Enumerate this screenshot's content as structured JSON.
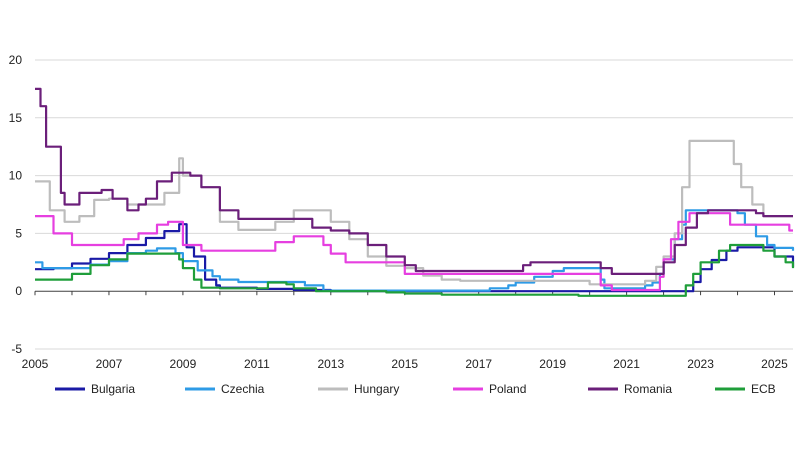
{
  "chart_data": {
    "type": "line",
    "title": "",
    "xlabel": "",
    "ylabel": "",
    "xlim": [
      2005,
      2025.5
    ],
    "ylim": [
      -5,
      20
    ],
    "grid": true,
    "legend_position": "bottom",
    "y_ticks": [
      "20",
      "15",
      "10",
      "5",
      "0",
      "-5"
    ],
    "x_ticks": [
      "2005",
      "2007",
      "2009",
      "2011",
      "2013",
      "2015",
      "2017",
      "2019",
      "2021",
      "2023",
      "2025"
    ],
    "series": [
      {
        "name": "Bulgaria",
        "color": "#1a1aa6",
        "points": [
          [
            2005,
            1.9
          ],
          [
            2005.5,
            2.0
          ],
          [
            2006,
            2.4
          ],
          [
            2006.5,
            2.8
          ],
          [
            2007,
            3.3
          ],
          [
            2007.5,
            4.0
          ],
          [
            2008,
            4.6
          ],
          [
            2008.5,
            5.2
          ],
          [
            2008.9,
            5.8
          ],
          [
            2009.1,
            3.8
          ],
          [
            2009.3,
            3.0
          ],
          [
            2009.6,
            1.0
          ],
          [
            2009.9,
            0.5
          ],
          [
            2010,
            0.3
          ],
          [
            2011,
            0.2
          ],
          [
            2012,
            0.1
          ],
          [
            2013,
            0.0
          ],
          [
            2015,
            0.0
          ],
          [
            2016,
            0.0
          ],
          [
            2020,
            0.0
          ],
          [
            2021,
            0.0
          ],
          [
            2022,
            0.0
          ],
          [
            2022.6,
            0.0
          ],
          [
            2022.8,
            0.8
          ],
          [
            2023,
            1.9
          ],
          [
            2023.3,
            2.7
          ],
          [
            2023.7,
            3.5
          ],
          [
            2024,
            3.8
          ],
          [
            2024.5,
            3.8
          ],
          [
            2025,
            3.0
          ],
          [
            2025.5,
            2.1
          ]
        ]
      },
      {
        "name": "Czechia",
        "color": "#2e9be6",
        "points": [
          [
            2005,
            2.5
          ],
          [
            2005.2,
            2.0
          ],
          [
            2006,
            2.0
          ],
          [
            2006.5,
            2.3
          ],
          [
            2007,
            2.6
          ],
          [
            2007.5,
            3.3
          ],
          [
            2008,
            3.5
          ],
          [
            2008.3,
            3.7
          ],
          [
            2008.6,
            3.7
          ],
          [
            2008.8,
            3.3
          ],
          [
            2009,
            2.6
          ],
          [
            2009.4,
            1.8
          ],
          [
            2009.8,
            1.3
          ],
          [
            2010,
            1.0
          ],
          [
            2010.5,
            0.8
          ],
          [
            2012,
            0.8
          ],
          [
            2012.3,
            0.5
          ],
          [
            2012.8,
            0.05
          ],
          [
            2013,
            0.05
          ],
          [
            2017,
            0.05
          ],
          [
            2017.3,
            0.25
          ],
          [
            2017.8,
            0.5
          ],
          [
            2018,
            0.75
          ],
          [
            2018.5,
            1.25
          ],
          [
            2019,
            1.75
          ],
          [
            2019.3,
            2.0
          ],
          [
            2020.2,
            2.0
          ],
          [
            2020.3,
            1.0
          ],
          [
            2020.4,
            0.25
          ],
          [
            2021.5,
            0.5
          ],
          [
            2021.7,
            0.75
          ],
          [
            2021.9,
            1.5
          ],
          [
            2022,
            2.75
          ],
          [
            2022.3,
            4.5
          ],
          [
            2022.5,
            5.75
          ],
          [
            2022.6,
            7.0
          ],
          [
            2023.9,
            7.0
          ],
          [
            2024,
            6.75
          ],
          [
            2024.2,
            5.75
          ],
          [
            2024.5,
            4.75
          ],
          [
            2024.8,
            4.0
          ],
          [
            2025,
            3.75
          ],
          [
            2025.5,
            3.5
          ]
        ]
      },
      {
        "name": "Hungary",
        "color": "#bdbdbd",
        "points": [
          [
            2005,
            9.5
          ],
          [
            2005.4,
            7.0
          ],
          [
            2005.8,
            6.0
          ],
          [
            2006.2,
            6.5
          ],
          [
            2006.6,
            7.9
          ],
          [
            2007,
            8.0
          ],
          [
            2007.5,
            7.5
          ],
          [
            2008,
            7.5
          ],
          [
            2008.5,
            8.5
          ],
          [
            2008.9,
            11.5
          ],
          [
            2009,
            10.0
          ],
          [
            2009.5,
            9.0
          ],
          [
            2010,
            6.0
          ],
          [
            2010.5,
            5.3
          ],
          [
            2011,
            5.3
          ],
          [
            2011.5,
            6.0
          ],
          [
            2012,
            7.0
          ],
          [
            2012.5,
            7.0
          ],
          [
            2013,
            6.0
          ],
          [
            2013.5,
            4.5
          ],
          [
            2014,
            3.0
          ],
          [
            2014.5,
            2.2
          ],
          [
            2015,
            2.0
          ],
          [
            2015.5,
            1.35
          ],
          [
            2016,
            1.0
          ],
          [
            2016.5,
            0.9
          ],
          [
            2020,
            0.6
          ],
          [
            2021,
            0.6
          ],
          [
            2021.5,
            0.9
          ],
          [
            2021.8,
            2.1
          ],
          [
            2022,
            3.0
          ],
          [
            2022.3,
            5.0
          ],
          [
            2022.5,
            9.0
          ],
          [
            2022.7,
            13.0
          ],
          [
            2023.7,
            13.0
          ],
          [
            2023.9,
            11.0
          ],
          [
            2024.1,
            9.0
          ],
          [
            2024.4,
            7.5
          ],
          [
            2024.7,
            6.5
          ],
          [
            2025.5,
            6.5
          ]
        ]
      },
      {
        "name": "Poland",
        "color": "#e63fe0",
        "points": [
          [
            2005,
            6.5
          ],
          [
            2005.2,
            6.5
          ],
          [
            2005.5,
            5.0
          ],
          [
            2006,
            4.0
          ],
          [
            2007,
            4.0
          ],
          [
            2007.4,
            4.5
          ],
          [
            2007.8,
            5.0
          ],
          [
            2008.3,
            5.75
          ],
          [
            2008.6,
            6.0
          ],
          [
            2008.9,
            6.0
          ],
          [
            2009,
            4.0
          ],
          [
            2009.5,
            3.5
          ],
          [
            2011,
            3.5
          ],
          [
            2011.5,
            4.25
          ],
          [
            2012,
            4.75
          ],
          [
            2012.5,
            4.75
          ],
          [
            2012.8,
            4.0
          ],
          [
            2013,
            3.25
          ],
          [
            2013.4,
            2.5
          ],
          [
            2014.8,
            2.5
          ],
          [
            2015,
            1.5
          ],
          [
            2020,
            1.5
          ],
          [
            2020.3,
            0.5
          ],
          [
            2020.6,
            0.1
          ],
          [
            2021.7,
            0.1
          ],
          [
            2021.9,
            1.25
          ],
          [
            2022,
            2.75
          ],
          [
            2022.2,
            4.5
          ],
          [
            2022.4,
            6.0
          ],
          [
            2022.7,
            6.75
          ],
          [
            2023.6,
            6.75
          ],
          [
            2023.8,
            5.75
          ],
          [
            2025.3,
            5.75
          ],
          [
            2025.4,
            5.25
          ],
          [
            2025.5,
            5.25
          ]
        ]
      },
      {
        "name": "Romania",
        "color": "#6b1f7a",
        "points": [
          [
            2005,
            17.5
          ],
          [
            2005.15,
            16.0
          ],
          [
            2005.3,
            12.5
          ],
          [
            2005.6,
            12.5
          ],
          [
            2005.7,
            8.5
          ],
          [
            2005.8,
            7.5
          ],
          [
            2006.1,
            7.5
          ],
          [
            2006.2,
            8.5
          ],
          [
            2006.8,
            8.75
          ],
          [
            2007.1,
            8.0
          ],
          [
            2007.5,
            7.0
          ],
          [
            2007.8,
            7.5
          ],
          [
            2008,
            8.0
          ],
          [
            2008.3,
            9.5
          ],
          [
            2008.7,
            10.25
          ],
          [
            2009.2,
            10.0
          ],
          [
            2009.5,
            9.0
          ],
          [
            2010,
            7.0
          ],
          [
            2010.5,
            6.25
          ],
          [
            2012,
            6.25
          ],
          [
            2012.5,
            5.5
          ],
          [
            2013,
            5.25
          ],
          [
            2013.5,
            5.0
          ],
          [
            2014,
            4.0
          ],
          [
            2014.5,
            3.0
          ],
          [
            2015,
            2.25
          ],
          [
            2015.3,
            1.75
          ],
          [
            2018,
            1.75
          ],
          [
            2018.2,
            2.25
          ],
          [
            2018.4,
            2.5
          ],
          [
            2020,
            2.5
          ],
          [
            2020.3,
            2.0
          ],
          [
            2020.6,
            1.5
          ],
          [
            2021.8,
            1.5
          ],
          [
            2022,
            2.5
          ],
          [
            2022.3,
            4.0
          ],
          [
            2022.6,
            5.5
          ],
          [
            2022.9,
            6.75
          ],
          [
            2023.2,
            7.0
          ],
          [
            2024.2,
            7.0
          ],
          [
            2024.5,
            6.75
          ],
          [
            2024.7,
            6.5
          ],
          [
            2025.5,
            6.5
          ]
        ]
      },
      {
        "name": "ECB",
        "color": "#1f9e3a",
        "points": [
          [
            2005,
            1.0
          ],
          [
            2005.8,
            1.0
          ],
          [
            2006,
            1.5
          ],
          [
            2006.5,
            2.25
          ],
          [
            2007,
            2.75
          ],
          [
            2007.5,
            3.25
          ],
          [
            2008,
            3.25
          ],
          [
            2008.6,
            3.25
          ],
          [
            2008.9,
            2.75
          ],
          [
            2009,
            2.0
          ],
          [
            2009.3,
            1.0
          ],
          [
            2009.5,
            0.3
          ],
          [
            2010,
            0.25
          ],
          [
            2011,
            0.25
          ],
          [
            2011.3,
            0.75
          ],
          [
            2011.8,
            0.6
          ],
          [
            2012,
            0.25
          ],
          [
            2012.6,
            0.0
          ],
          [
            2014,
            0.0
          ],
          [
            2014.5,
            -0.1
          ],
          [
            2015,
            -0.2
          ],
          [
            2016,
            -0.3
          ],
          [
            2019.7,
            -0.4
          ],
          [
            2022.5,
            -0.4
          ],
          [
            2022.6,
            0.5
          ],
          [
            2022.8,
            1.5
          ],
          [
            2023,
            2.5
          ],
          [
            2023.5,
            3.5
          ],
          [
            2023.8,
            4.0
          ],
          [
            2024.5,
            4.0
          ],
          [
            2024.7,
            3.5
          ],
          [
            2025,
            3.0
          ],
          [
            2025.3,
            2.5
          ],
          [
            2025.5,
            2.0
          ]
        ]
      }
    ]
  }
}
